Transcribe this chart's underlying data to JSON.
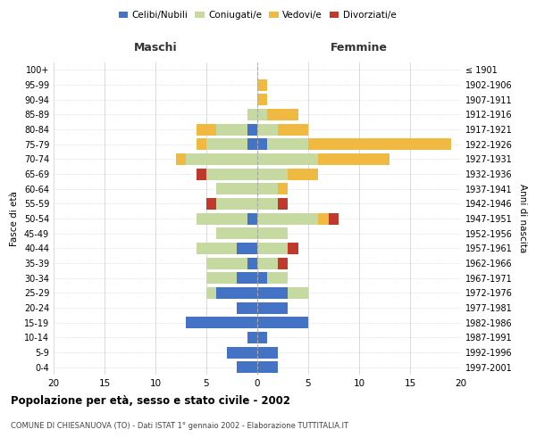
{
  "age_groups": [
    "0-4",
    "5-9",
    "10-14",
    "15-19",
    "20-24",
    "25-29",
    "30-34",
    "35-39",
    "40-44",
    "45-49",
    "50-54",
    "55-59",
    "60-64",
    "65-69",
    "70-74",
    "75-79",
    "80-84",
    "85-89",
    "90-94",
    "95-99",
    "100+"
  ],
  "birth_years": [
    "1997-2001",
    "1992-1996",
    "1987-1991",
    "1982-1986",
    "1977-1981",
    "1972-1976",
    "1967-1971",
    "1962-1966",
    "1957-1961",
    "1952-1956",
    "1947-1951",
    "1942-1946",
    "1937-1941",
    "1932-1936",
    "1927-1931",
    "1922-1926",
    "1917-1921",
    "1912-1916",
    "1907-1911",
    "1902-1906",
    "≤ 1901"
  ],
  "male": {
    "celibi": [
      2,
      3,
      1,
      7,
      2,
      4,
      2,
      1,
      2,
      0,
      1,
      0,
      0,
      0,
      0,
      1,
      1,
      0,
      0,
      0,
      0
    ],
    "coniugati": [
      0,
      0,
      0,
      0,
      0,
      1,
      3,
      4,
      4,
      4,
      5,
      4,
      4,
      5,
      7,
      4,
      3,
      1,
      0,
      0,
      0
    ],
    "vedovi": [
      0,
      0,
      0,
      0,
      0,
      0,
      0,
      0,
      0,
      0,
      0,
      0,
      0,
      0,
      1,
      1,
      2,
      0,
      0,
      0,
      0
    ],
    "divorziati": [
      0,
      0,
      0,
      0,
      0,
      0,
      0,
      0,
      0,
      0,
      0,
      1,
      0,
      1,
      0,
      0,
      0,
      0,
      0,
      0,
      0
    ]
  },
  "female": {
    "nubili": [
      2,
      2,
      1,
      5,
      3,
      3,
      1,
      0,
      0,
      0,
      0,
      0,
      0,
      0,
      0,
      1,
      0,
      0,
      0,
      0,
      0
    ],
    "coniugate": [
      0,
      0,
      0,
      0,
      0,
      2,
      2,
      2,
      3,
      3,
      6,
      2,
      2,
      3,
      6,
      4,
      2,
      1,
      0,
      0,
      0
    ],
    "vedove": [
      0,
      0,
      0,
      0,
      0,
      0,
      0,
      0,
      0,
      0,
      1,
      0,
      1,
      3,
      7,
      14,
      3,
      3,
      1,
      1,
      0
    ],
    "divorziate": [
      0,
      0,
      0,
      0,
      0,
      0,
      0,
      1,
      1,
      0,
      1,
      1,
      0,
      0,
      0,
      0,
      0,
      0,
      0,
      0,
      0
    ]
  },
  "colors": {
    "celibi_nubili": "#4472c4",
    "coniugati": "#c5d9a0",
    "vedovi": "#f0b942",
    "divorziati": "#c0392b"
  },
  "xlim": 20,
  "xtick_step": 5,
  "title": "Popolazione per età, sesso e stato civile - 2002",
  "subtitle": "COMUNE DI CHIESANUOVA (TO) - Dati ISTAT 1° gennaio 2002 - Elaborazione TUTTITALIA.IT",
  "xlabel_left": "Maschi",
  "xlabel_right": "Femmine",
  "ylabel_left": "Fasce di età",
  "ylabel_right": "Anni di nascita",
  "bg_color": "#ffffff",
  "grid_color": "#cccccc",
  "center_line_color": "#aaaaaa",
  "femmine_color": "#333333",
  "maschi_color": "#333333"
}
